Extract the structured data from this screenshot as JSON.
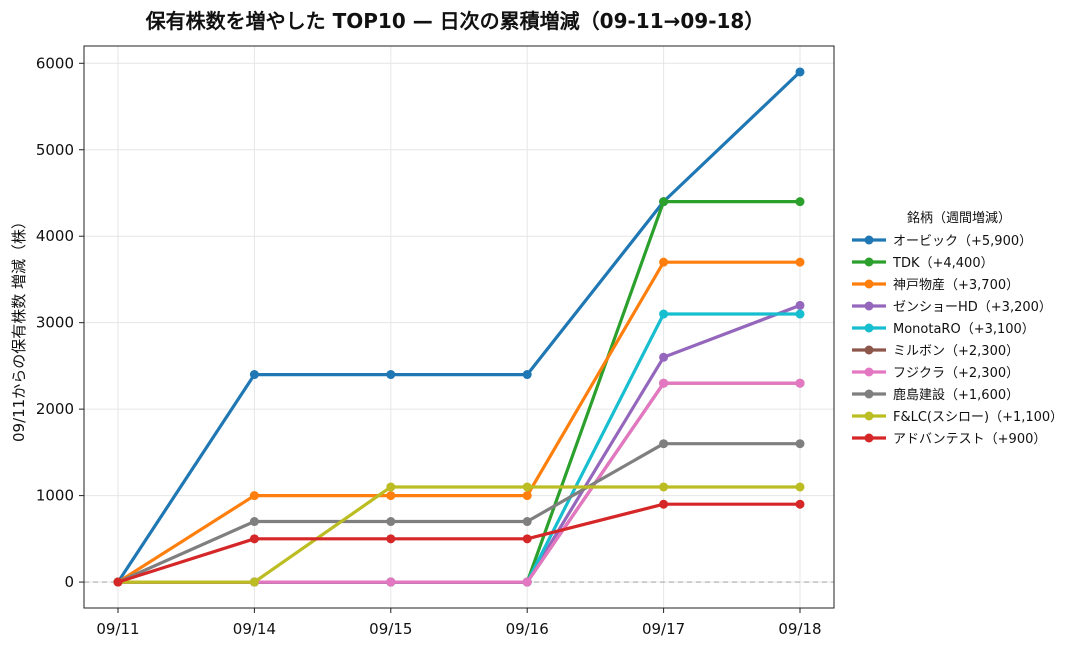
{
  "chart_data": {
    "type": "line",
    "title": "保有株数を増やした TOP10 — 日次の累積増減（09-11→09-18）",
    "xlabel": "",
    "ylabel": "09/11からの保有株数 増減（株）",
    "categories": [
      "09/11",
      "09/14",
      "09/15",
      "09/16",
      "09/17",
      "09/18"
    ],
    "ylim": [
      -300,
      6200
    ],
    "yticks": [
      0,
      1000,
      2000,
      3000,
      4000,
      5000,
      6000
    ],
    "grid": true,
    "zero_line": "dashed",
    "legend_title": "銘柄（週間増減）",
    "legend_placement": "right",
    "series": [
      {
        "name": "オービック（+5,900）",
        "color": "#1f77b4",
        "values": [
          0,
          2400,
          2400,
          2400,
          4400,
          5900
        ]
      },
      {
        "name": "TDK（+4,400）",
        "color": "#2ca02c",
        "values": [
          0,
          0,
          0,
          0,
          4400,
          4400
        ]
      },
      {
        "name": "神戸物産（+3,700）",
        "color": "#ff7f0e",
        "values": [
          0,
          1000,
          1000,
          1000,
          3700,
          3700
        ]
      },
      {
        "name": "ゼンショーHD（+3,200）",
        "color": "#9467bd",
        "values": [
          0,
          0,
          0,
          0,
          2600,
          3200
        ]
      },
      {
        "name": "MonotaRO（+3,100）",
        "color": "#17becf",
        "values": [
          0,
          0,
          0,
          0,
          3100,
          3100
        ]
      },
      {
        "name": "ミルボン（+2,300）",
        "color": "#8c564b",
        "values": [
          0,
          0,
          0,
          0,
          2300,
          2300
        ]
      },
      {
        "name": "フジクラ（+2,300）",
        "color": "#e377c2",
        "values": [
          0,
          0,
          0,
          0,
          2300,
          2300
        ]
      },
      {
        "name": "鹿島建設（+1,600）",
        "color": "#7f7f7f",
        "values": [
          0,
          700,
          700,
          700,
          1600,
          1600
        ]
      },
      {
        "name": "F&LC(スシロー)（+1,100）",
        "color": "#bcbd22",
        "values": [
          0,
          0,
          1100,
          1100,
          1100,
          1100
        ]
      },
      {
        "name": "アドバンテスト（+900）",
        "color": "#d62728",
        "values": [
          0,
          500,
          500,
          500,
          900,
          900
        ]
      }
    ]
  }
}
